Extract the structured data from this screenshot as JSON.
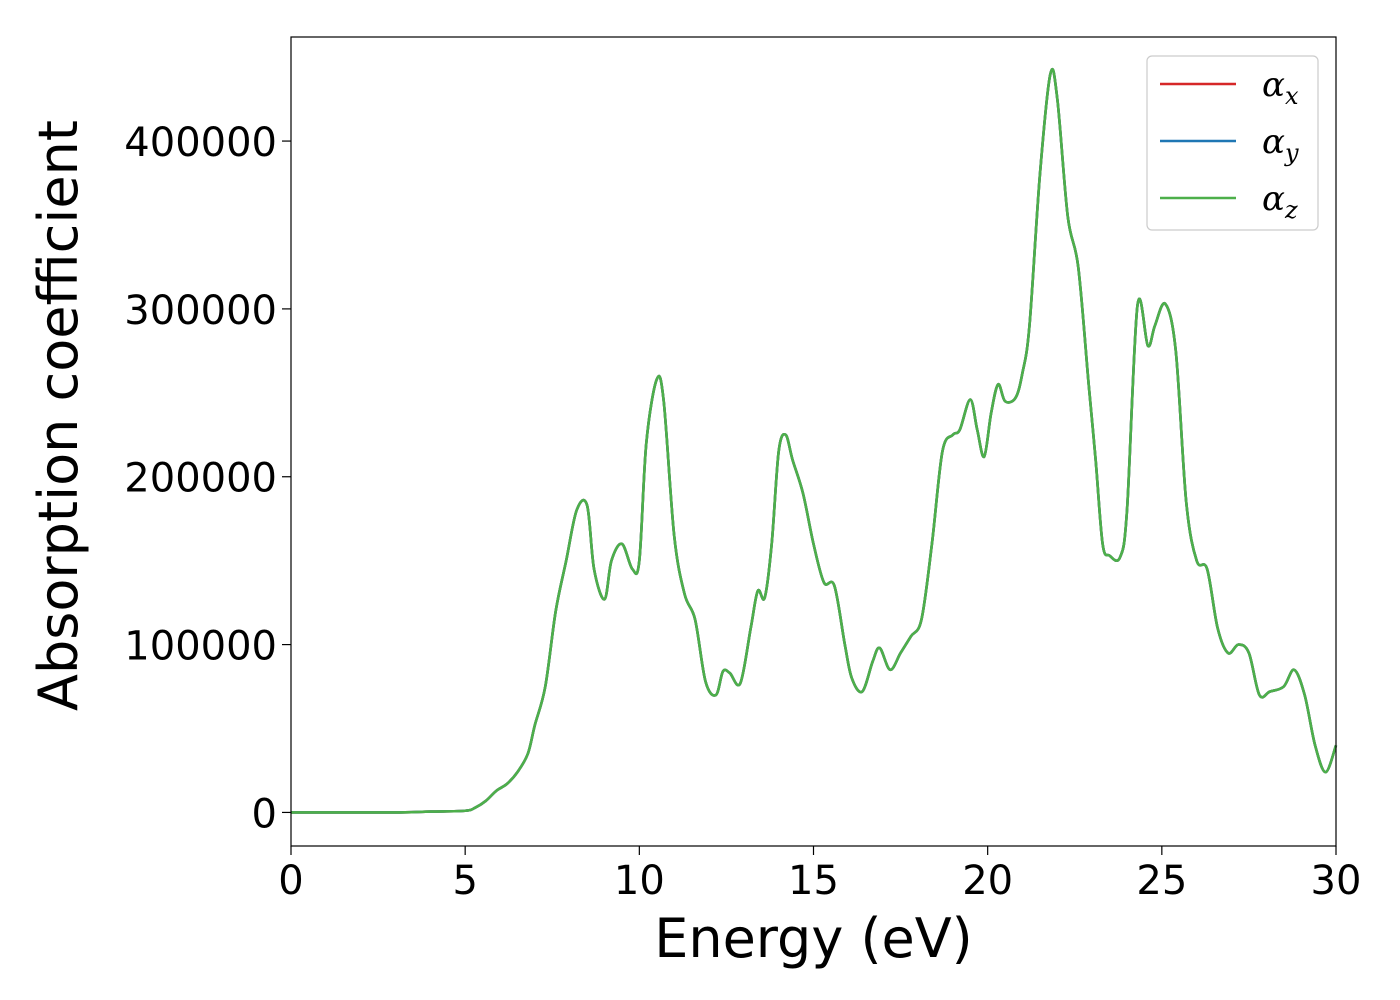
{
  "chart_data": {
    "type": "line",
    "title": "",
    "xlabel": "Energy (eV)",
    "ylabel": "Absorption coefficient",
    "xlim": [
      0,
      30
    ],
    "ylim": [
      -20000,
      462000
    ],
    "xticks": [
      0,
      5,
      10,
      15,
      20,
      25,
      30
    ],
    "xtick_labels": [
      "0",
      "5",
      "10",
      "15",
      "20",
      "25",
      "30"
    ],
    "yticks": [
      0,
      100000,
      200000,
      300000,
      400000
    ],
    "ytick_labels": [
      "0",
      "100000",
      "200000",
      "300000",
      "400000"
    ],
    "grid": false,
    "legend_position": "top-right",
    "x": [
      0,
      1,
      2,
      3,
      4,
      5,
      5.3,
      5.6,
      5.9,
      6.2,
      6.5,
      6.8,
      7.0,
      7.3,
      7.6,
      7.9,
      8.2,
      8.5,
      8.7,
      9.0,
      9.2,
      9.5,
      9.8,
      10.0,
      10.2,
      10.5,
      10.7,
      11.0,
      11.3,
      11.6,
      11.9,
      12.2,
      12.4,
      12.6,
      12.9,
      13.2,
      13.4,
      13.6,
      13.8,
      14.0,
      14.2,
      14.4,
      14.7,
      15.0,
      15.3,
      15.6,
      15.9,
      16.1,
      16.4,
      16.7,
      16.9,
      17.2,
      17.5,
      17.8,
      18.1,
      18.4,
      18.7,
      19.0,
      19.2,
      19.5,
      19.7,
      19.9,
      20.1,
      20.3,
      20.5,
      20.8,
      21.0,
      21.2,
      21.5,
      21.8,
      22.0,
      22.3,
      22.6,
      22.9,
      23.1,
      23.3,
      23.5,
      23.8,
      24.0,
      24.3,
      24.6,
      24.8,
      25.1,
      25.4,
      25.7,
      26.0,
      26.3,
      26.6,
      26.9,
      27.2,
      27.5,
      27.8,
      28.1,
      28.5,
      28.8,
      29.1,
      29.4,
      29.7,
      30.0
    ],
    "series": [
      {
        "name": "αx",
        "label_main": "α",
        "label_sub": "x",
        "color": "#d62728",
        "values": [
          0,
          0,
          0,
          0,
          500,
          1000,
          3000,
          7000,
          13000,
          17000,
          24000,
          35000,
          52000,
          75000,
          120000,
          150000,
          180000,
          183000,
          145000,
          127000,
          150000,
          160000,
          145000,
          150000,
          220000,
          258000,
          245000,
          165000,
          130000,
          115000,
          78000,
          70000,
          84000,
          83000,
          77000,
          110000,
          132000,
          128000,
          160000,
          215000,
          225000,
          210000,
          190000,
          160000,
          137000,
          135000,
          100000,
          80000,
          72000,
          90000,
          98000,
          85000,
          95000,
          105000,
          115000,
          160000,
          215000,
          225000,
          228000,
          246000,
          228000,
          212000,
          238000,
          255000,
          245000,
          247000,
          262000,
          290000,
          380000,
          440000,
          425000,
          355000,
          325000,
          255000,
          210000,
          160000,
          153000,
          152000,
          180000,
          302000,
          278000,
          290000,
          303000,
          275000,
          185000,
          150000,
          145000,
          110000,
          95000,
          100000,
          95000,
          70000,
          72000,
          75000,
          85000,
          70000,
          40000,
          24000,
          40000
        ]
      },
      {
        "name": "αy",
        "label_main": "α",
        "label_sub": "y",
        "color": "#1f77b4",
        "values": [
          0,
          0,
          0,
          0,
          500,
          1000,
          3000,
          7000,
          13000,
          17000,
          24000,
          35000,
          52000,
          75000,
          120000,
          150000,
          180000,
          183000,
          145000,
          127000,
          150000,
          160000,
          145000,
          150000,
          220000,
          258000,
          245000,
          165000,
          130000,
          115000,
          78000,
          70000,
          84000,
          83000,
          77000,
          110000,
          132000,
          128000,
          160000,
          215000,
          225000,
          210000,
          190000,
          160000,
          137000,
          135000,
          100000,
          80000,
          72000,
          90000,
          98000,
          85000,
          95000,
          105000,
          115000,
          160000,
          215000,
          225000,
          228000,
          246000,
          228000,
          212000,
          238000,
          255000,
          245000,
          247000,
          262000,
          290000,
          380000,
          440000,
          425000,
          355000,
          325000,
          255000,
          210000,
          160000,
          153000,
          152000,
          180000,
          302000,
          278000,
          290000,
          303000,
          275000,
          185000,
          150000,
          145000,
          110000,
          95000,
          100000,
          95000,
          70000,
          72000,
          75000,
          85000,
          70000,
          40000,
          24000,
          40000
        ]
      },
      {
        "name": "αz",
        "label_main": "α",
        "label_sub": "z",
        "color": "#4daf4a",
        "values": [
          0,
          0,
          0,
          0,
          500,
          1000,
          3000,
          7000,
          13000,
          17000,
          24000,
          35000,
          52000,
          75000,
          120000,
          150000,
          180000,
          183000,
          145000,
          127000,
          150000,
          160000,
          145000,
          150000,
          220000,
          258000,
          245000,
          165000,
          130000,
          115000,
          78000,
          70000,
          84000,
          83000,
          77000,
          110000,
          132000,
          128000,
          160000,
          215000,
          225000,
          210000,
          190000,
          160000,
          137000,
          135000,
          100000,
          80000,
          72000,
          90000,
          98000,
          85000,
          95000,
          105000,
          115000,
          160000,
          215000,
          225000,
          228000,
          246000,
          228000,
          212000,
          238000,
          255000,
          245000,
          247000,
          262000,
          290000,
          380000,
          440000,
          425000,
          355000,
          325000,
          255000,
          210000,
          160000,
          153000,
          152000,
          180000,
          302000,
          278000,
          290000,
          303000,
          275000,
          185000,
          150000,
          145000,
          110000,
          95000,
          100000,
          95000,
          70000,
          72000,
          75000,
          85000,
          70000,
          40000,
          24000,
          40000
        ]
      }
    ]
  }
}
